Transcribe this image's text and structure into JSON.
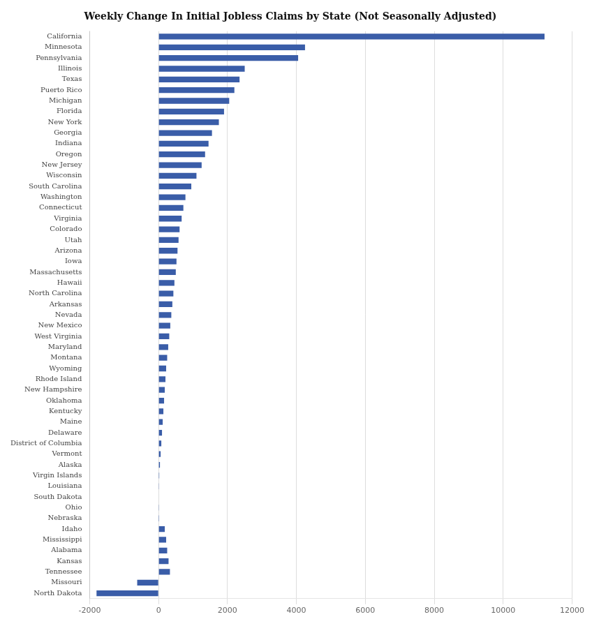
{
  "chart_data": {
    "type": "bar",
    "orientation": "horizontal",
    "title": "Weekly Change In Initial Jobless Claims by State (Not Seasonally Adjusted)",
    "categories": [
      "California",
      "Minnesota",
      "Pennsylvania",
      "Illinois",
      "Texas",
      "Puerto Rico",
      "Michigan",
      "Florida",
      "New York",
      "Georgia",
      "Indiana",
      "Oregon",
      "New Jersey",
      "Wisconsin",
      "South Carolina",
      "Washington",
      "Connecticut",
      "Virginia",
      "Colorado",
      "Utah",
      "Arizona",
      "Iowa",
      "Massachusetts",
      "Hawaii",
      "North Carolina",
      "Arkansas",
      "Nevada",
      "New Mexico",
      "West Virginia",
      "Maryland",
      "Montana",
      "Wyoming",
      "Rhode Island",
      "New Hampshire",
      "Oklahoma",
      "Kentucky",
      "Maine",
      "Delaware",
      "District of Columbia",
      "Vermont",
      "Alaska",
      "Virgin Islands",
      "Louisiana",
      "South Dakota",
      "Ohio",
      "Nebraska",
      "Idaho",
      "Mississippi",
      "Alabama",
      "Kansas",
      "Tennessee",
      "Missouri",
      "North Dakota"
    ],
    "values": [
      11200,
      4250,
      4050,
      2500,
      2350,
      2200,
      2050,
      1900,
      1750,
      1550,
      1450,
      1350,
      1250,
      1100,
      950,
      780,
      720,
      670,
      610,
      580,
      550,
      520,
      500,
      460,
      430,
      400,
      370,
      340,
      310,
      280,
      250,
      220,
      200,
      180,
      160,
      140,
      120,
      100,
      80,
      60,
      40,
      20,
      15,
      10,
      5,
      2,
      180,
      220,
      250,
      290,
      330,
      -620,
      -1800
    ],
    "color": "#3a5da8",
    "xlim": [
      -2000,
      12000
    ],
    "xticks": [
      -2000,
      0,
      2000,
      4000,
      6000,
      8000,
      10000,
      12000
    ],
    "grid": true
  }
}
